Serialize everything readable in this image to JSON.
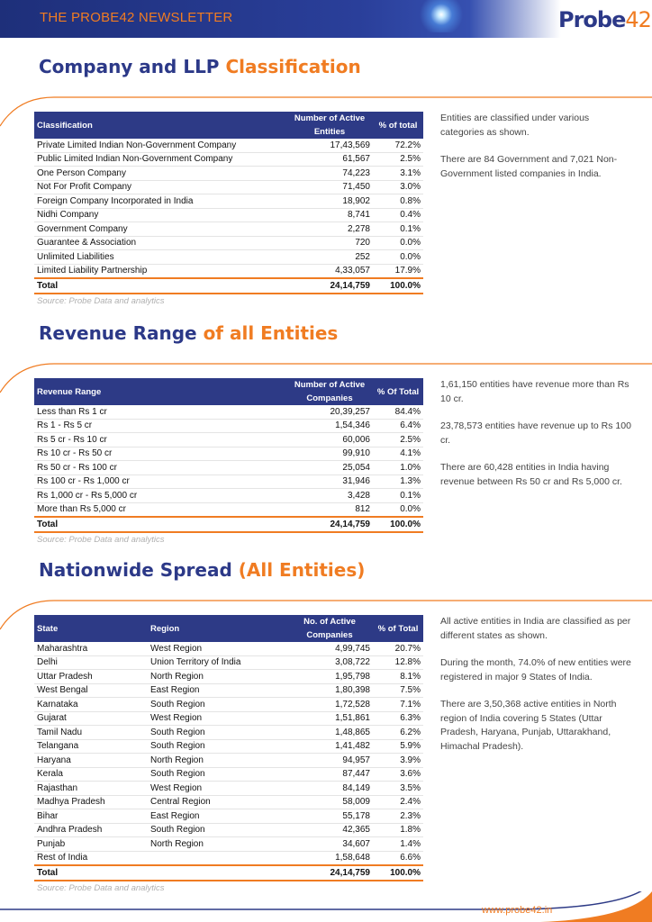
{
  "header": {
    "newsletter": "THE PROBE42 NEWSLETTER",
    "logo_main": "Probe",
    "logo_num": "42"
  },
  "sections": [
    {
      "title_main": "Company and LLP",
      "title_accent": "Classification",
      "table": {
        "columns": [
          "Classification",
          "Number of Active Entities",
          "% of total"
        ],
        "rows": [
          [
            "Private Limited Indian Non-Government Company",
            "17,43,569",
            "72.2%"
          ],
          [
            "Public Limited Indian Non-Government Company",
            "61,567",
            "2.5%"
          ],
          [
            "One Person Company",
            "74,223",
            "3.1%"
          ],
          [
            "Not For Profit Company",
            "71,450",
            "3.0%"
          ],
          [
            "Foreign Company Incorporated in India",
            "18,902",
            "0.8%"
          ],
          [
            "Nidhi Company",
            "8,741",
            "0.4%"
          ],
          [
            "Government Company",
            "2,278",
            "0.1%"
          ],
          [
            "Guarantee & Association",
            "720",
            "0.0%"
          ],
          [
            "Unlimited Liabilities",
            "252",
            "0.0%"
          ],
          [
            "Limited Liability Partnership",
            "4,33,057",
            "17.9%"
          ]
        ],
        "total": [
          "Total",
          "24,14,759",
          "100.0%"
        ]
      },
      "source": "Source: Probe Data and analytics",
      "notes": [
        "Entities are classified under various categories as shown.",
        "There are 84 Government and 7,021 Non-Government listed companies in India."
      ]
    },
    {
      "title_main": "Revenue Range",
      "title_accent": "of all Entities",
      "table": {
        "columns": [
          "Revenue Range",
          "Number of Active Companies",
          "% Of Total"
        ],
        "rows": [
          [
            "Less than Rs 1 cr",
            "20,39,257",
            "84.4%"
          ],
          [
            "Rs 1 - Rs 5 cr",
            "1,54,346",
            "6.4%"
          ],
          [
            "Rs 5 cr - Rs 10 cr",
            "60,006",
            "2.5%"
          ],
          [
            "Rs 10 cr - Rs 50 cr",
            "99,910",
            "4.1%"
          ],
          [
            "Rs 50 cr - Rs 100 cr",
            "25,054",
            "1.0%"
          ],
          [
            "Rs 100 cr - Rs 1,000 cr",
            "31,946",
            "1.3%"
          ],
          [
            "Rs 1,000 cr - Rs 5,000 cr",
            "3,428",
            "0.1%"
          ],
          [
            "More than Rs 5,000 cr",
            "812",
            "0.0%"
          ]
        ],
        "total": [
          "Total",
          "24,14,759",
          "100.0%"
        ]
      },
      "source": "Source: Probe Data and analytics",
      "notes": [
        "1,61,150 entities have revenue more than Rs 10 cr.",
        "23,78,573 entities have revenue up to Rs 100 cr.",
        "There are 60,428 entities in India having revenue between Rs 50 cr and Rs 5,000 cr."
      ]
    },
    {
      "title_main": "Nationwide Spread",
      "title_accent": "(All Entities)",
      "table": {
        "columns": [
          "State",
          "Region",
          "No. of Active Companies",
          "% of Total"
        ],
        "rows": [
          [
            "Maharashtra",
            "West Region",
            "4,99,745",
            "20.7%"
          ],
          [
            "Delhi",
            "Union Territory of India",
            "3,08,722",
            "12.8%"
          ],
          [
            "Uttar Pradesh",
            "North Region",
            "1,95,798",
            "8.1%"
          ],
          [
            "West Bengal",
            "East Region",
            "1,80,398",
            "7.5%"
          ],
          [
            "Karnataka",
            "South Region",
            "1,72,528",
            "7.1%"
          ],
          [
            "Gujarat",
            "West Region",
            "1,51,861",
            "6.3%"
          ],
          [
            "Tamil Nadu",
            "South Region",
            "1,48,865",
            "6.2%"
          ],
          [
            "Telangana",
            "South Region",
            "1,41,482",
            "5.9%"
          ],
          [
            "Haryana",
            "North Region",
            "94,957",
            "3.9%"
          ],
          [
            "Kerala",
            "South Region",
            "87,447",
            "3.6%"
          ],
          [
            "Rajasthan",
            "West Region",
            "84,149",
            "3.5%"
          ],
          [
            "Madhya Pradesh",
            "Central Region",
            "58,009",
            "2.4%"
          ],
          [
            "Bihar",
            "East Region",
            "55,178",
            "2.3%"
          ],
          [
            "Andhra Pradesh",
            "South Region",
            "42,365",
            "1.8%"
          ],
          [
            "Punjab",
            "North Region",
            "34,607",
            "1.4%"
          ],
          [
            "Rest of India",
            null,
            "1,58,648",
            "6.6%"
          ]
        ],
        "total": [
          "Total",
          "24,14,759",
          "100.0%"
        ]
      },
      "source": "Source: Probe Data and analytics",
      "notes": [
        "All active entities in India are classified as per different states as shown.",
        "During the month, 74.0% of new entities were registered in major 9 States of India.",
        "There are 3,50,368 active entities in North region of India covering 5 States (Uttar Pradesh, Haryana, Punjab, Uttarakhand, Himachal Pradesh)."
      ]
    }
  ],
  "footer": "www.probe42.in"
}
